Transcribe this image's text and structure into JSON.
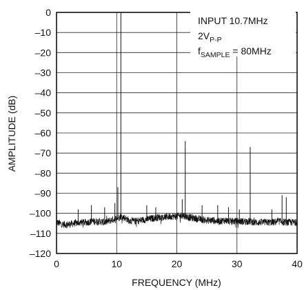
{
  "chart_data": {
    "type": "line",
    "title": "",
    "xlabel": "FREQUENCY (MHz)",
    "ylabel": "AMPLITUDE (dB)",
    "xlim": [
      0,
      40
    ],
    "ylim": [
      -120,
      0
    ],
    "x_ticks": [
      0,
      10,
      20,
      30,
      40
    ],
    "x_tick_labels": [
      "0",
      "10",
      "20",
      "30",
      "40"
    ],
    "y_ticks": [
      0,
      -10,
      -20,
      -30,
      -40,
      -50,
      -60,
      -70,
      -80,
      -90,
      -100,
      -110,
      -120
    ],
    "y_tick_labels": [
      "0",
      "–10",
      "–20",
      "–30",
      "–40",
      "–50",
      "–60",
      "–70",
      "–80",
      "–90",
      "–100",
      "–110",
      "–120"
    ],
    "grid": true,
    "annotation": {
      "line1": "INPUT 10.7MHz",
      "line2_main": "2V",
      "line2_sub": "P-P",
      "line3_main": "f",
      "line3_sub": "SAMPLE",
      "line3_rest": " = 80MHz"
    },
    "noise_floor": {
      "points": [
        [
          0.0,
          -104.5
        ],
        [
          0.5,
          -105.0
        ],
        [
          1.0,
          -105.5
        ],
        [
          2.0,
          -105.5
        ],
        [
          3.0,
          -105.0
        ],
        [
          4.0,
          -104.5
        ],
        [
          5.0,
          -104.5
        ],
        [
          6.0,
          -104.0
        ],
        [
          7.0,
          -104.0
        ],
        [
          8.0,
          -104.5
        ],
        [
          9.0,
          -103.5
        ],
        [
          9.5,
          -103.0
        ],
        [
          10.0,
          -102.5
        ],
        [
          10.7,
          -101.5
        ],
        [
          11.5,
          -102.5
        ],
        [
          12.0,
          -103.5
        ],
        [
          13.0,
          -104.0
        ],
        [
          14.0,
          -103.5
        ],
        [
          15.0,
          -103.0
        ],
        [
          16.0,
          -102.5
        ],
        [
          17.0,
          -102.0
        ],
        [
          18.0,
          -102.0
        ],
        [
          19.0,
          -101.5
        ],
        [
          20.0,
          -101.5
        ],
        [
          21.0,
          -101.0
        ],
        [
          22.0,
          -102.0
        ],
        [
          23.0,
          -102.5
        ],
        [
          24.0,
          -103.0
        ],
        [
          25.0,
          -103.5
        ],
        [
          26.0,
          -103.5
        ],
        [
          27.0,
          -104.0
        ],
        [
          28.0,
          -103.5
        ],
        [
          29.0,
          -104.0
        ],
        [
          30.0,
          -104.0
        ],
        [
          31.0,
          -104.0
        ],
        [
          32.0,
          -104.0
        ],
        [
          33.0,
          -104.5
        ],
        [
          34.0,
          -104.5
        ],
        [
          35.0,
          -104.5
        ],
        [
          36.0,
          -104.5
        ],
        [
          37.0,
          -104.0
        ],
        [
          38.0,
          -104.5
        ],
        [
          39.0,
          -104.5
        ],
        [
          40.0,
          -104.5
        ]
      ]
    },
    "spurs": [
      {
        "x": 10.7,
        "y": 0
      },
      {
        "x": 21.4,
        "y": -64
      },
      {
        "x": 32.2,
        "y": -67
      },
      {
        "x": 10.2,
        "y": -87
      },
      {
        "x": 9.7,
        "y": -95
      },
      {
        "x": 20.9,
        "y": -93
      },
      {
        "x": 37.5,
        "y": -91
      },
      {
        "x": 38.2,
        "y": -92
      },
      {
        "x": 3.6,
        "y": -98
      },
      {
        "x": 5.8,
        "y": -96
      },
      {
        "x": 8.0,
        "y": -97
      },
      {
        "x": 15.0,
        "y": -96
      },
      {
        "x": 16.5,
        "y": -97
      },
      {
        "x": 24.2,
        "y": -96
      },
      {
        "x": 26.8,
        "y": -96
      },
      {
        "x": 28.6,
        "y": -97
      },
      {
        "x": 30.4,
        "y": -98
      },
      {
        "x": 35.8,
        "y": -98
      }
    ]
  }
}
